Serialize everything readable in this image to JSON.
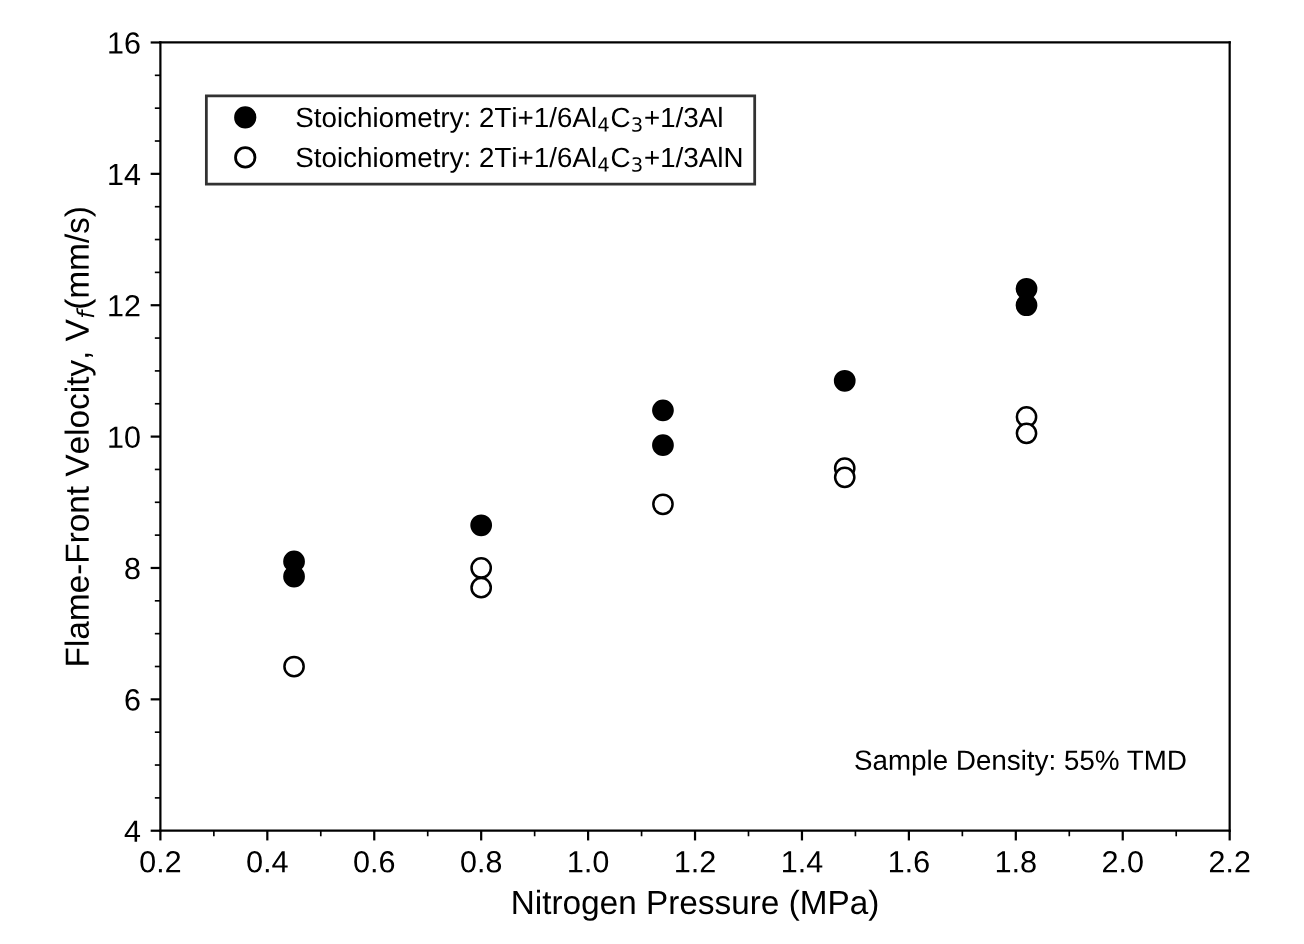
{
  "chart_data": {
    "type": "scatter",
    "xlabel": "Nitrogen Pressure (MPa)",
    "ylabel": "Flame-Front Velocity, V$_{f}$(mm/s)",
    "xlim": [
      0.2,
      2.2
    ],
    "xticks": [
      {
        "value": 0.2,
        "label": "0.2"
      },
      {
        "value": 0.4,
        "label": "0.4"
      },
      {
        "value": 0.6,
        "label": "0.6"
      },
      {
        "value": 0.8,
        "label": "0.8"
      },
      {
        "value": 1.0,
        "label": "1.0"
      },
      {
        "value": 1.2,
        "label": "1.2"
      },
      {
        "value": 1.4,
        "label": "1.4"
      },
      {
        "value": 1.6,
        "label": "1.6"
      },
      {
        "value": 1.8,
        "label": "1.8"
      },
      {
        "value": 2.0,
        "label": "2.0"
      },
      {
        "value": 2.2,
        "label": "2.2"
      }
    ],
    "ylim": [
      4,
      16
    ],
    "yticks": [
      4,
      6,
      8,
      10,
      12,
      14,
      16
    ],
    "series": [
      {
        "name": "Stoichiometry: 2Ti+1/6Al$_{4}$C$_{3}$+1/3Al",
        "color": "#000000",
        "x": [
          0.45,
          0.45,
          0.8,
          1.14,
          1.14,
          1.48,
          1.82,
          1.82
        ],
        "values": [
          8.1,
          7.87,
          8.65,
          10.4,
          9.87,
          10.85,
          12.25,
          12.0
        ]
      },
      {
        "name": "Stoichiometry: 2Ti+1/6Al$_{4}$C$_{3}$+1/3AlN",
        "color": "#ffffff",
        "x": [
          0.45,
          0.8,
          0.8,
          1.14,
          1.48,
          1.48,
          1.82,
          1.82
        ],
        "values": [
          6.5,
          8.0,
          7.7,
          8.97,
          9.52,
          9.38,
          10.3,
          10.05
        ]
      }
    ],
    "marker": "circle",
    "legend": "top left",
    "grid": false,
    "annotations": [
      "Sample Density: 55% TMD"
    ]
  }
}
